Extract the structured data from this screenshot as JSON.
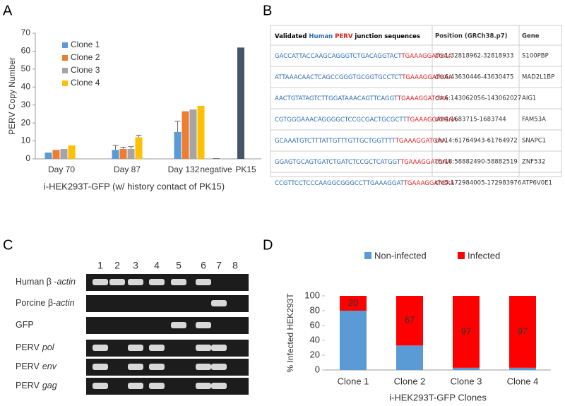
{
  "panels": [
    "A",
    "B",
    "C",
    "D"
  ],
  "chart_data": [
    {
      "type": "bar",
      "y_label": "PERV Copy Number",
      "x_label": "i-HEK293T-GFP (w/ history contact of PK15)",
      "categories": [
        "Day 70",
        "Day 87",
        "Day 132",
        "negative",
        "PK15"
      ],
      "series": [
        {
          "name": "Clone 1",
          "color": "#5b9bd5",
          "values": [
            3.5,
            5,
            15,
            null,
            null
          ],
          "errors": [
            null,
            2.5,
            6,
            null,
            null
          ]
        },
        {
          "name": "Clone 2",
          "color": "#ed7d31",
          "values": [
            5,
            5.5,
            26.5,
            null,
            null
          ],
          "errors": [
            null,
            1,
            null,
            null,
            null
          ]
        },
        {
          "name": "Clone 3",
          "color": "#a5a5a5",
          "values": [
            5.5,
            5.5,
            27.5,
            null,
            null
          ],
          "errors": [
            null,
            1.3,
            null,
            null,
            null
          ]
        },
        {
          "name": "Clone 4",
          "color": "#ffc000",
          "values": [
            7.5,
            12,
            29.5,
            null,
            null
          ],
          "errors": [
            null,
            1.2,
            null,
            null,
            null
          ]
        },
        {
          "color": "#44546a",
          "values": [
            null,
            null,
            null,
            0.3,
            62
          ]
        }
      ],
      "ylim": [
        0,
        70
      ],
      "yticks": [
        0,
        10,
        20,
        30,
        40,
        50,
        60,
        70
      ]
    },
    {
      "type": "stacked_bar",
      "y_label": "% Infected HEK293T",
      "x_label": "i-HEK293T-GFP Clones",
      "categories": [
        "Clone 1",
        "Clone 2",
        "Clone 3",
        "Clone 4"
      ],
      "series": [
        {
          "name": "Non-infected",
          "color": "#5b9bd5",
          "values": [
            80,
            33,
            3,
            3
          ]
        },
        {
          "name": "Infected",
          "color": "#ff0000",
          "values": [
            20,
            67,
            97,
            97
          ],
          "data_labels": true
        }
      ],
      "ylim": [
        0,
        100
      ],
      "yticks": [
        0,
        20,
        40,
        60,
        80,
        100
      ]
    }
  ],
  "table": {
    "header": {
      "sequence": [
        "Validated",
        "Human",
        "PERV",
        "junction sequences"
      ],
      "position": "Position (GRCh38.p7)",
      "gene": "Gene"
    },
    "rows": [
      {
        "sequence": [
          "GACCATTACCAAGCAGGGTCTGACAGGTACT",
          "TGAAAGGATGAA"
        ],
        "position": "chr1:32818962-32818933",
        "gene": "S100PBP"
      },
      {
        "sequence": [
          "ATTAAACAACTCAGCCGGGTGCGGTGCCTCT",
          "TGAAAGGATGAA"
        ],
        "position": "chr6:43630446-43630475",
        "gene": "MAD2L1BP"
      },
      {
        "sequence": [
          "AACTGTATAGTCTTGGATAAACAGTTCAGGT",
          "TGAAAGGATGAA"
        ],
        "position": "chr6:143062056-143062027",
        "gene": "AIG1"
      },
      {
        "sequence": [
          "CGTGGGAAACAGGGGCTCCGCGACTGCGCTT",
          "TGAAAGGATGAA"
        ],
        "position": "chr4:1683715-1683744",
        "gene": "FAM53A"
      },
      {
        "sequence": [
          "GCAAATGTCTTTATTGTTTGTTGCTGGTTTT",
          "TGAAAGGATGAA"
        ],
        "position": "chr14:61764943-61764972",
        "gene": "SNAPC1"
      },
      {
        "sequence": [
          "GGAGTGCAGTGATCTGATCTCCGCTCATGGT",
          "TGAAAGGATGAA"
        ],
        "position": "chr18:58882490-58882519",
        "gene": "ZNF532"
      },
      {
        "sequence": [
          "CCGTTCCTCCCAAGGCGGGCCTTGAAAGGAT",
          "TGAAAGGATGAA"
        ],
        "position": "chr5:172984005-172983976",
        "gene": "ATP6V0E1"
      }
    ]
  },
  "gel": {
    "lanes": [
      "1",
      "2",
      "3",
      "4",
      "5",
      "6",
      "7",
      "8"
    ],
    "rows": [
      [
        "Human β -",
        "actin"
      ],
      [
        "Porcine β-",
        "actin"
      ],
      [
        "GFP"
      ],
      [
        "PERV",
        "pol"
      ],
      [
        "PERV",
        "env"
      ],
      [
        "PERV",
        "gag"
      ]
    ]
  }
}
